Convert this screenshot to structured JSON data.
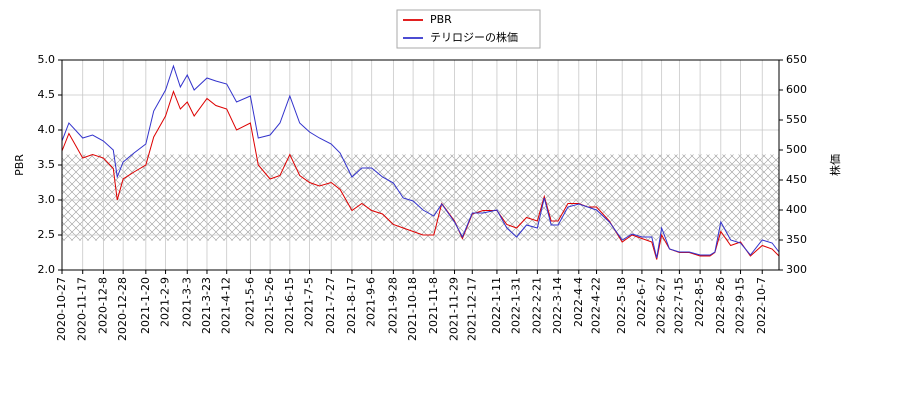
{
  "chart_data": {
    "type": "line",
    "series": [
      {
        "name": "PBR",
        "color": "#dd0000",
        "axis": "y",
        "values": [
          3.7,
          3.95,
          3.6,
          3.65,
          3.6,
          3.45,
          3.0,
          3.3,
          3.4,
          3.5,
          3.9,
          4.2,
          4.55,
          4.3,
          4.4,
          4.2,
          4.45,
          4.35,
          4.3,
          4.0,
          4.1,
          3.5,
          3.3,
          3.35,
          3.65,
          3.35,
          3.25,
          3.2,
          3.25,
          3.15,
          2.85,
          2.95,
          2.85,
          2.8,
          2.65,
          2.6,
          2.55,
          2.5,
          2.5,
          2.95,
          2.7,
          2.45,
          2.8,
          2.85,
          2.85,
          2.65,
          2.6,
          2.75,
          2.7,
          3.05,
          2.7,
          2.7,
          2.95,
          2.95,
          2.9,
          2.9,
          2.7,
          2.4,
          2.5,
          2.45,
          2.4,
          2.15,
          2.5,
          2.3,
          2.25,
          2.25,
          2.2,
          2.2,
          2.25,
          2.55,
          2.35,
          2.4,
          2.2,
          2.35,
          2.3,
          2.2
        ]
      },
      {
        "name": "テリロジーの株価",
        "color": "#3333cc",
        "axis": "y2",
        "values": [
          515,
          545,
          520,
          525,
          515,
          500,
          455,
          480,
          495,
          510,
          565,
          600,
          640,
          605,
          625,
          600,
          620,
          615,
          610,
          580,
          590,
          520,
          525,
          545,
          590,
          545,
          530,
          520,
          510,
          495,
          455,
          470,
          470,
          455,
          445,
          420,
          415,
          400,
          390,
          410,
          380,
          355,
          395,
          395,
          400,
          370,
          355,
          375,
          370,
          420,
          375,
          375,
          405,
          410,
          405,
          400,
          380,
          350,
          360,
          355,
          355,
          320,
          370,
          335,
          330,
          330,
          325,
          325,
          330,
          380,
          350,
          345,
          325,
          350,
          345,
          330
        ]
      }
    ],
    "x": [
      "2020-10-27",
      "2020-11-3",
      "2020-11-17",
      "2020-11-27",
      "2020-12-8",
      "2020-12-18",
      "2020-12-22",
      "2020-12-28",
      "2021-1-8",
      "2021-1-20",
      "2021-1-28",
      "2021-2-9",
      "2021-2-17",
      "2021-2-24",
      "2021-3-3",
      "2021-3-10",
      "2021-3-23",
      "2021-4-1",
      "2021-4-12",
      "2021-4-22",
      "2021-5-6",
      "2021-5-14",
      "2021-5-26",
      "2021-6-5",
      "2021-6-15",
      "2021-6-25",
      "2021-7-5",
      "2021-7-15",
      "2021-7-27",
      "2021-8-5",
      "2021-8-17",
      "2021-8-27",
      "2021-9-6",
      "2021-9-17",
      "2021-9-28",
      "2021-10-8",
      "2021-10-18",
      "2021-10-28",
      "2021-11-8",
      "2021-11-16",
      "2021-11-29",
      "2021-12-7",
      "2021-12-17",
      "2021-12-28",
      "2022-1-11",
      "2022-1-21",
      "2022-1-31",
      "2022-2-10",
      "2022-2-21",
      "2022-2-28",
      "2022-3-7",
      "2022-3-14",
      "2022-3-24",
      "2022-4-4",
      "2022-4-13",
      "2022-4-22",
      "2022-5-5",
      "2022-5-18",
      "2022-5-28",
      "2022-6-7",
      "2022-6-17",
      "2022-6-22",
      "2022-6-27",
      "2022-7-5",
      "2022-7-15",
      "2022-7-25",
      "2022-8-5",
      "2022-8-15",
      "2022-8-20",
      "2022-8-26",
      "2022-9-5",
      "2022-9-15",
      "2022-9-25",
      "2022-10-7",
      "2022-10-17",
      "2022-10-24"
    ],
    "xlim": [
      "2020-10-27",
      "2022-10-24"
    ],
    "xticks": [
      "2020-10-27",
      "2020-11-17",
      "2020-12-8",
      "2020-12-28",
      "2021-1-20",
      "2021-2-9",
      "2021-3-3",
      "2021-3-23",
      "2021-4-12",
      "2021-5-6",
      "2021-5-26",
      "2021-6-15",
      "2021-7-5",
      "2021-7-27",
      "2021-8-17",
      "2021-9-6",
      "2021-9-28",
      "2021-10-18",
      "2021-11-8",
      "2021-11-29",
      "2021-12-17",
      "2022-1-11",
      "2022-1-31",
      "2022-2-21",
      "2022-3-14",
      "2022-4-4",
      "2022-4-22",
      "2022-5-18",
      "2022-6-7",
      "2022-6-27",
      "2022-7-15",
      "2022-8-5",
      "2022-8-26",
      "2022-9-15",
      "2022-10-7"
    ],
    "ylabel": "PBR",
    "y2label": "株価",
    "ylim": [
      2.0,
      5.0
    ],
    "yticks": [
      {
        "value": 2.0,
        "label": "2.0"
      },
      2.5,
      {
        "value": 3.0,
        "label": "3.0"
      },
      3.5,
      {
        "value": 4.0,
        "label": "4.0"
      },
      4.5,
      {
        "value": 5.0,
        "label": "5.0"
      }
    ],
    "y2lim": [
      300,
      650
    ],
    "y2ticks": [
      300,
      350,
      400,
      450,
      500,
      550,
      600,
      650
    ],
    "band": [
      2.42,
      3.65
    ],
    "grid": true
  }
}
